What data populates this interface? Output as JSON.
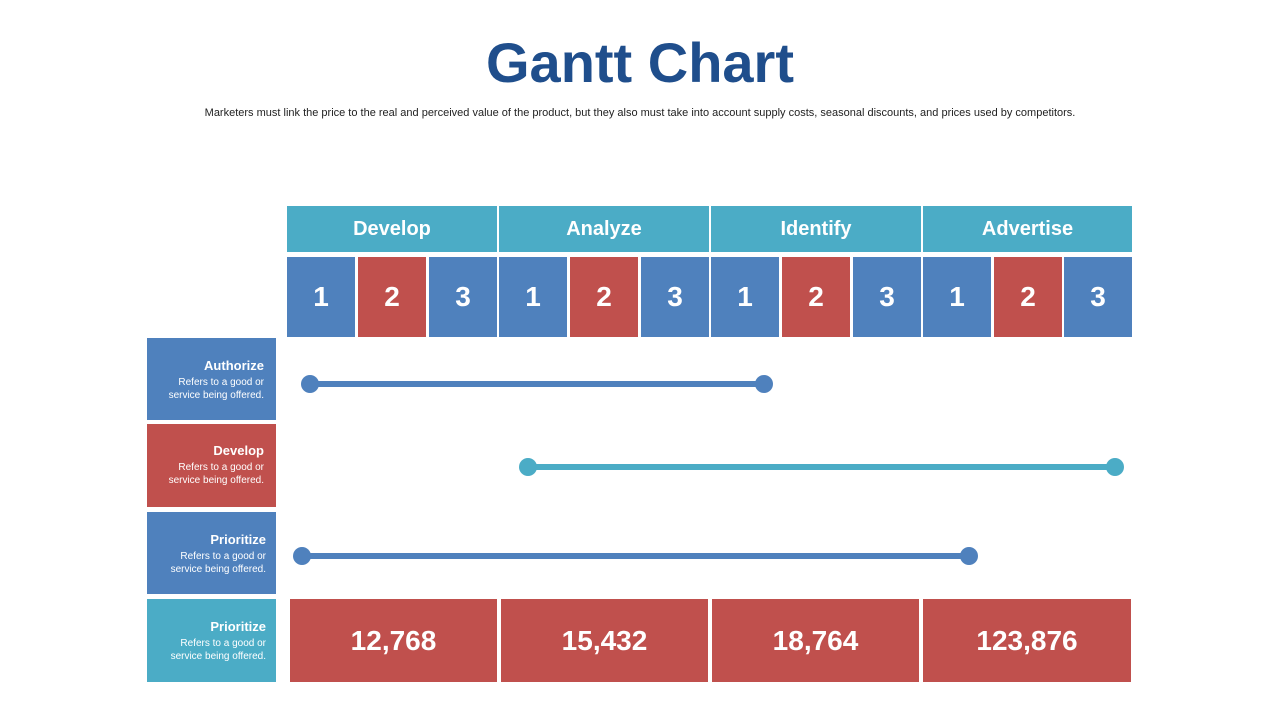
{
  "title": "Gantt Chart",
  "subtitle": "Marketers must link the price to the real and perceived value of the product, but they also must take into account supply costs, seasonal discounts, and prices used by competitors.",
  "phases": [
    "Develop",
    "Analyze",
    "Identify",
    "Advertise"
  ],
  "steps": [
    "1",
    "2",
    "3",
    "1",
    "2",
    "3",
    "1",
    "2",
    "3",
    "1",
    "2",
    "3"
  ],
  "colors": {
    "blue": "#4f81bd",
    "red": "#c0504d",
    "teal": "#4bacc6",
    "title": "#1f4e8c"
  },
  "tasks": [
    {
      "name": "Authorize",
      "desc_line1": "Refers to a good or",
      "desc_line2": "service being offered.",
      "color": "#4f81bd"
    },
    {
      "name": "Develop",
      "desc_line1": "Refers to a good or",
      "desc_line2": "service being offered.",
      "color": "#c0504d"
    },
    {
      "name": "Prioritize",
      "desc_line1": "Refers to a good or",
      "desc_line2": "service being offered.",
      "color": "#4f81bd"
    },
    {
      "name": "Prioritize",
      "desc_line1": "Refers to a good or",
      "desc_line2": "service being offered.",
      "color": "#4bacc6"
    }
  ],
  "values": [
    "12,768",
    "15,432",
    "18,764",
    "123,876"
  ]
}
